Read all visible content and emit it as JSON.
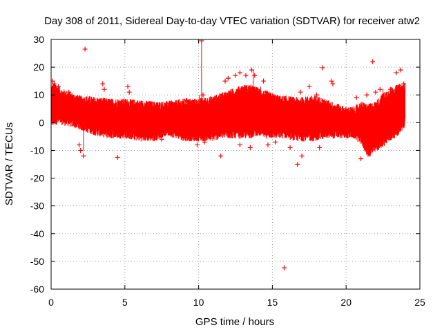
{
  "chart_data": {
    "type": "scatter",
    "title": "Day 308 of 2011, Sidereal Day-to-day VTEC variation (SDTVAR) for receiver atw2",
    "xlabel": "GPS time / hours",
    "ylabel": "SDTVAR / TECUs",
    "xlim": [
      0,
      25
    ],
    "ylim": [
      -60,
      30
    ],
    "xticks": [
      0,
      5,
      10,
      15,
      20,
      25
    ],
    "yticks": [
      -60,
      -50,
      -40,
      -30,
      -20,
      -10,
      0,
      10,
      20,
      30
    ],
    "grid": true,
    "series_color": "#ff0000",
    "series": [
      {
        "name": "SDTVAR",
        "marker": "+",
        "band": {
          "x": [
            0.0,
            0.3,
            0.6,
            1.0,
            1.5,
            2.0,
            2.5,
            3.0,
            4.0,
            5.0,
            6.0,
            7.0,
            7.8,
            8.5,
            9.0,
            10.0,
            10.5,
            11.0,
            11.5,
            12.0,
            12.5,
            13.0,
            13.5,
            14.0,
            14.5,
            15.0,
            15.5,
            16.0,
            16.5,
            17.0,
            17.5,
            18.0,
            18.5,
            19.0,
            19.5,
            20.0,
            20.5,
            21.0,
            21.5,
            22.0,
            22.5,
            23.0,
            23.5,
            24.0
          ],
          "upper": [
            12,
            13,
            11,
            10,
            9,
            8,
            8,
            7.5,
            7,
            7,
            6.5,
            6,
            6,
            6.5,
            7,
            7,
            7.5,
            8,
            9,
            10,
            11,
            12,
            12,
            11,
            10,
            9,
            8,
            8,
            7.5,
            7.5,
            8,
            8,
            7,
            6,
            5,
            4,
            4,
            6,
            5,
            6,
            9,
            11,
            12,
            13
          ],
          "lower": [
            0,
            1,
            1,
            0.5,
            0,
            -1,
            -2,
            -3,
            -4,
            -4,
            -5,
            -5,
            -3,
            -4,
            -5,
            -5,
            -5,
            -5,
            -4,
            -4,
            -4,
            -4,
            -4,
            -3,
            -4,
            -4,
            -4,
            -4,
            -5,
            -5,
            -5,
            -5,
            -4,
            -4,
            -4,
            -4,
            -4,
            -6,
            -11,
            -9,
            -7,
            -5,
            -3,
            0
          ]
        },
        "points": [
          [
            2.3,
            26.5
          ],
          [
            10.2,
            29.5
          ],
          [
            18.4,
            19.8
          ],
          [
            21.8,
            22
          ],
          [
            4.5,
            -12.5
          ],
          [
            11.5,
            -12
          ],
          [
            15.8,
            -52.3
          ],
          [
            16.7,
            -15
          ],
          [
            17.0,
            -12
          ],
          [
            0.1,
            15
          ],
          [
            0.2,
            14
          ],
          [
            2.0,
            -10
          ],
          [
            2.2,
            -12
          ],
          [
            1.9,
            -8
          ],
          [
            3.5,
            14
          ],
          [
            3.6,
            12
          ],
          [
            5.3,
            11
          ],
          [
            5.2,
            13
          ],
          [
            8.0,
            7
          ],
          [
            9.2,
            8
          ],
          [
            10.3,
            10
          ],
          [
            10.4,
            -7
          ],
          [
            11.8,
            15
          ],
          [
            12.0,
            16
          ],
          [
            12.5,
            17
          ],
          [
            12.8,
            18
          ],
          [
            13.2,
            17
          ],
          [
            13.6,
            19
          ],
          [
            13.8,
            17
          ],
          [
            14.4,
            15
          ],
          [
            14.7,
            -8
          ],
          [
            15.2,
            -7
          ],
          [
            16.2,
            -9
          ],
          [
            16.9,
            11
          ],
          [
            17.5,
            13
          ],
          [
            18.0,
            10
          ],
          [
            18.2,
            -9
          ],
          [
            19.0,
            15
          ],
          [
            19.1,
            14
          ],
          [
            19.6,
            5
          ],
          [
            20.0,
            -4
          ],
          [
            20.7,
            9
          ],
          [
            21.0,
            -13
          ],
          [
            21.4,
            10
          ],
          [
            22.0,
            11
          ],
          [
            22.3,
            12
          ],
          [
            23.0,
            12
          ],
          [
            23.4,
            18
          ],
          [
            23.7,
            19
          ],
          [
            23.9,
            14
          ],
          [
            12.8,
            -8
          ],
          [
            13.5,
            -9
          ],
          [
            9.9,
            -8
          ],
          [
            6.0,
            6
          ],
          [
            7.5,
            -6
          ],
          [
            1.2,
            11
          ],
          [
            0.5,
            13
          ]
        ]
      }
    ]
  }
}
